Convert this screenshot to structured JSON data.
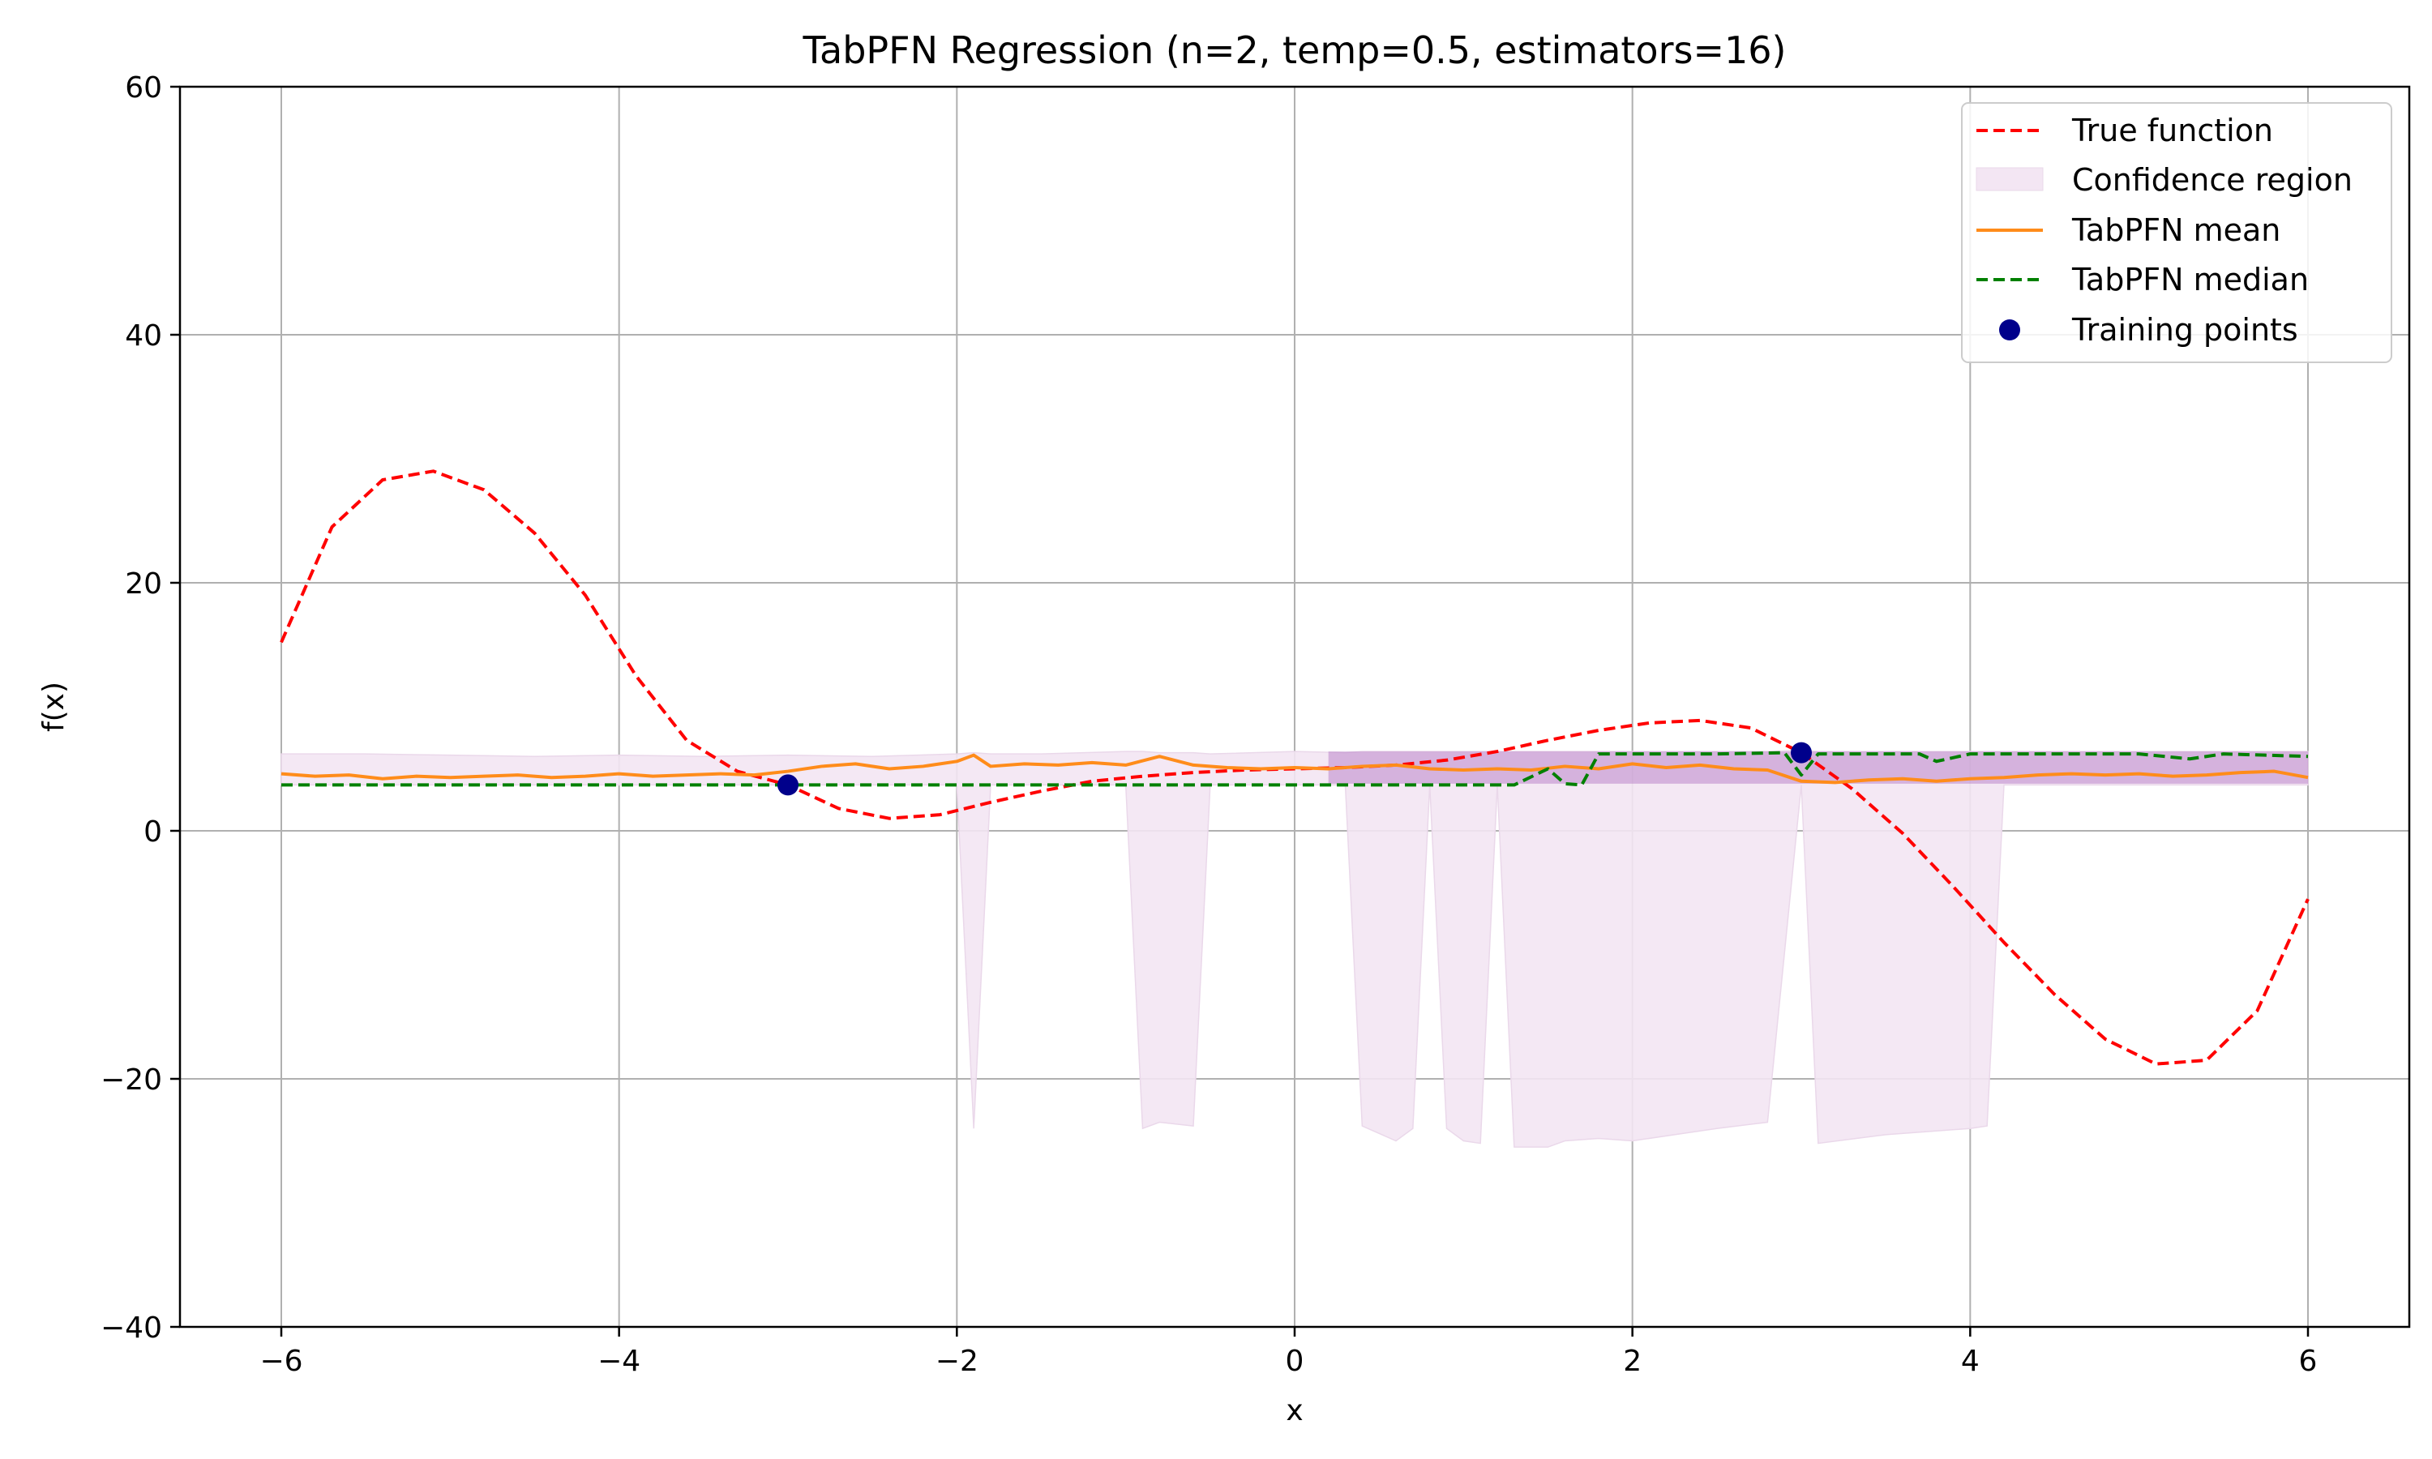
{
  "chart_data": {
    "type": "line",
    "title": "TabPFN Regression (n=2, temp=0.5, estimators=16)",
    "xlabel": "x",
    "ylabel": "f(x)",
    "xlim": [
      -6.6,
      6.6
    ],
    "ylim": [
      -40,
      60
    ],
    "xticks": [
      -6,
      -4,
      -2,
      0,
      2,
      4,
      6
    ],
    "yticks": [
      -40,
      -20,
      0,
      20,
      40,
      60
    ],
    "grid": true,
    "legend_position": "top-right",
    "colors": {
      "true_function": "#ff0000",
      "confidence_fill": "#f3e6f3",
      "confidence_dark": "#b070c0",
      "mean": "#ff8c1a",
      "median": "#008000",
      "points": "#00008b",
      "grid": "#b0b0b0"
    },
    "series": [
      {
        "name": "True function",
        "style": "dashed",
        "x": [
          -6,
          -5.7,
          -5.4,
          -5.1,
          -4.8,
          -4.5,
          -4.2,
          -3.9,
          -3.6,
          -3.3,
          -3.0,
          -2.7,
          -2.4,
          -2.1,
          -1.8,
          -1.5,
          -1.2,
          -0.9,
          -0.6,
          -0.3,
          0,
          0.3,
          0.6,
          0.9,
          1.2,
          1.5,
          1.8,
          2.1,
          2.4,
          2.7,
          3.0,
          3.3,
          3.6,
          3.9,
          4.2,
          4.5,
          4.8,
          5.1,
          5.4,
          5.7,
          6.0
        ],
        "y": [
          15.2,
          24.5,
          28.3,
          29.0,
          27.5,
          24.0,
          19.0,
          12.5,
          7.3,
          4.8,
          3.7,
          1.8,
          1.0,
          1.3,
          2.3,
          3.2,
          4.0,
          4.4,
          4.7,
          4.9,
          5.0,
          5.1,
          5.3,
          5.7,
          6.4,
          7.3,
          8.1,
          8.7,
          8.9,
          8.3,
          6.3,
          3.4,
          -0.2,
          -4.5,
          -9.0,
          -13.2,
          -16.8,
          -18.8,
          -18.5,
          -14.5,
          -5.5
        ]
      },
      {
        "name": "Confidence region",
        "style": "fill",
        "x": [
          -6,
          -5.5,
          -5.0,
          -4.5,
          -4.0,
          -3.5,
          -3.0,
          -2.5,
          -2.0,
          -1.9,
          -1.8,
          -1.5,
          -1.0,
          -0.9,
          -0.8,
          -0.6,
          -0.5,
          0,
          0.3,
          0.4,
          0.6,
          0.7,
          0.8,
          0.9,
          1.0,
          1.1,
          1.2,
          1.3,
          1.5,
          1.6,
          1.8,
          2.0,
          2.5,
          2.8,
          3.0,
          3.1,
          3.5,
          4.0,
          4.1,
          4.2,
          4.5,
          5.0,
          5.5,
          6.0
        ],
        "upper": [
          6.2,
          6.2,
          6.1,
          6.0,
          6.1,
          6.0,
          6.1,
          6.0,
          6.2,
          6.3,
          6.2,
          6.2,
          6.4,
          6.4,
          6.3,
          6.3,
          6.2,
          6.4,
          6.3,
          6.4,
          6.4,
          6.4,
          6.4,
          6.4,
          6.4,
          6.4,
          6.4,
          6.4,
          6.4,
          6.4,
          6.4,
          6.4,
          6.4,
          6.4,
          6.5,
          6.4,
          6.4,
          6.4,
          6.4,
          6.4,
          6.4,
          6.4,
          6.4,
          6.4
        ],
        "lower": [
          3.7,
          3.7,
          3.7,
          3.7,
          3.7,
          3.7,
          3.7,
          3.7,
          3.7,
          -24.0,
          3.7,
          3.7,
          3.7,
          -24.0,
          -23.5,
          -23.8,
          3.7,
          3.7,
          3.7,
          -23.8,
          -25.0,
          -24.0,
          3.7,
          -24.0,
          -25.0,
          -25.2,
          3.7,
          -25.5,
          -25.5,
          -25.0,
          -24.8,
          -25.0,
          -24.0,
          -23.5,
          3.7,
          -25.2,
          -24.5,
          -24.0,
          -23.8,
          3.7,
          3.7,
          3.7,
          3.7,
          3.7
        ]
      },
      {
        "name": "TabPFN mean",
        "style": "solid",
        "x": [
          -6,
          -5.8,
          -5.6,
          -5.4,
          -5.2,
          -5.0,
          -4.8,
          -4.6,
          -4.4,
          -4.2,
          -4.0,
          -3.8,
          -3.6,
          -3.4,
          -3.2,
          -3.0,
          -2.8,
          -2.6,
          -2.4,
          -2.2,
          -2.0,
          -1.9,
          -1.8,
          -1.6,
          -1.4,
          -1.2,
          -1.0,
          -0.8,
          -0.6,
          -0.4,
          -0.2,
          0,
          0.2,
          0.4,
          0.6,
          0.8,
          1.0,
          1.2,
          1.4,
          1.6,
          1.8,
          2.0,
          2.2,
          2.4,
          2.6,
          2.8,
          3.0,
          3.2,
          3.4,
          3.6,
          3.8,
          4.0,
          4.2,
          4.4,
          4.6,
          4.8,
          5.0,
          5.2,
          5.4,
          5.6,
          5.8,
          6.0
        ],
        "y": [
          4.6,
          4.4,
          4.5,
          4.2,
          4.4,
          4.3,
          4.4,
          4.5,
          4.3,
          4.4,
          4.6,
          4.4,
          4.5,
          4.6,
          4.5,
          4.8,
          5.2,
          5.4,
          5.0,
          5.2,
          5.6,
          6.1,
          5.2,
          5.4,
          5.3,
          5.5,
          5.3,
          6.0,
          5.3,
          5.1,
          5.0,
          5.1,
          5.0,
          5.2,
          5.3,
          5.0,
          4.9,
          5.0,
          4.9,
          5.2,
          5.0,
          5.4,
          5.1,
          5.3,
          5.0,
          4.9,
          4.0,
          3.9,
          4.1,
          4.2,
          4.0,
          4.2,
          4.3,
          4.5,
          4.6,
          4.5,
          4.6,
          4.4,
          4.5,
          4.7,
          4.8,
          4.3
        ]
      },
      {
        "name": "TabPFN median",
        "style": "dashed",
        "x": [
          -6,
          -3.0,
          -2.0,
          0,
          1.0,
          1.3,
          1.5,
          1.6,
          1.7,
          1.8,
          1.9,
          2.0,
          2.5,
          2.9,
          3.0,
          3.1,
          3.5,
          3.7,
          3.8,
          4.0,
          5.0,
          5.3,
          5.5,
          6.0
        ],
        "y": [
          3.7,
          3.7,
          3.7,
          3.7,
          3.7,
          3.7,
          5.0,
          3.8,
          3.7,
          6.2,
          6.2,
          6.2,
          6.2,
          6.3,
          4.5,
          6.2,
          6.2,
          6.2,
          5.6,
          6.2,
          6.2,
          5.8,
          6.2,
          6.0
        ]
      },
      {
        "name": "Training points",
        "style": "points",
        "x": [
          -3.0,
          3.0
        ],
        "y": [
          3.7,
          6.3
        ]
      }
    ]
  }
}
